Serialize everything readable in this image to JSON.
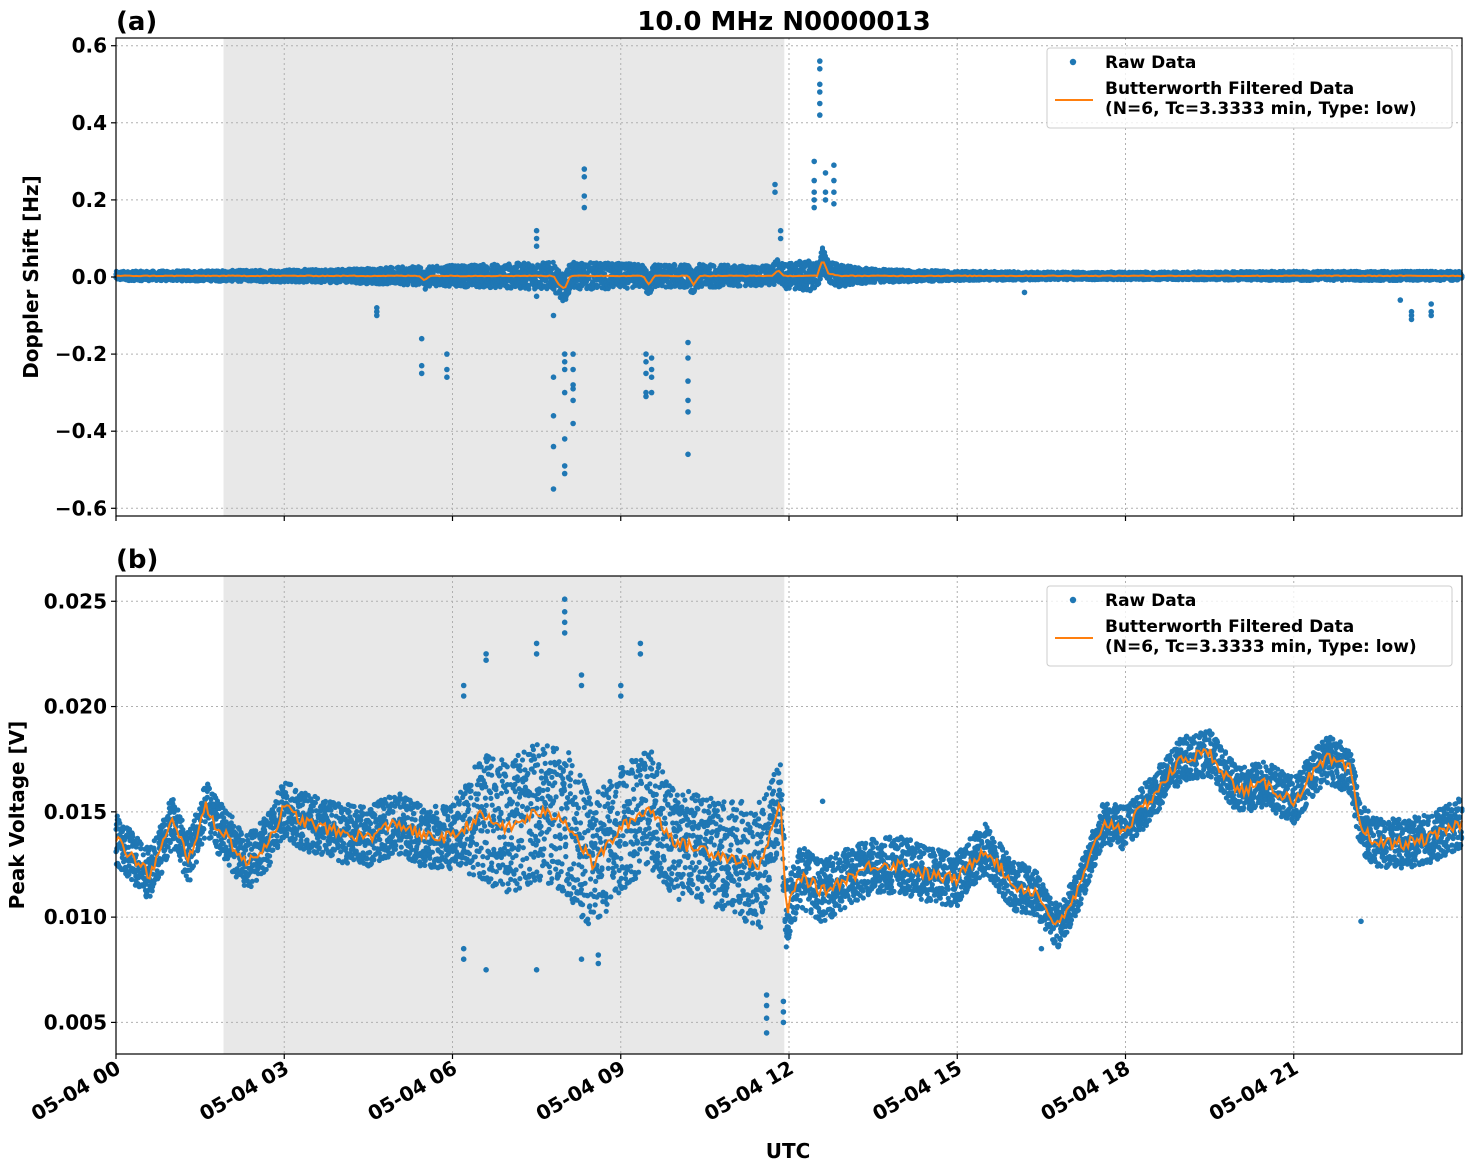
{
  "figure": {
    "title": "10.0 MHz N0000013",
    "xlabel": "UTC",
    "colors": {
      "raw": "#1f77b4",
      "filtered": "#ff7f0e",
      "shade": "#e8e8e8"
    }
  },
  "chart_data": [
    {
      "type": "scatter",
      "panel_label": "(a)",
      "ylabel": "Doppler Shift [Hz]",
      "ylim": [
        -0.62,
        0.62
      ],
      "yticks": [
        -0.6,
        -0.4,
        -0.2,
        0.0,
        0.2,
        0.4,
        0.6
      ],
      "ytick_labels": [
        "−0.6",
        "−0.4",
        "−0.2",
        "0.0",
        "0.2",
        "0.4",
        "0.6"
      ],
      "xlim": [
        "05-04 00:00",
        "05-05 00:00"
      ],
      "xticks": [
        "05-04 00:00",
        "05-04 03:00",
        "05-04 06:00",
        "05-04 09:00",
        "05-04 12:00",
        "05-04 15:00",
        "05-04 18:00",
        "05-04 21:00"
      ],
      "xtick_labels": [],
      "shaded_interval": [
        "05-04 01:55",
        "05-04 11:55"
      ],
      "grid": true,
      "legend_position": "top-right",
      "series": [
        {
          "name": "Raw Data",
          "style": "points",
          "band_hours": [
            0,
            2,
            4,
            5.5,
            6.5,
            7.5,
            8.5,
            9.5,
            10.5,
            11.5,
            12.3,
            12.8,
            13.5,
            15,
            17,
            19,
            21,
            22.5,
            24
          ],
          "band_half_width": [
            0.012,
            0.014,
            0.018,
            0.025,
            0.03,
            0.035,
            0.035,
            0.03,
            0.03,
            0.025,
            0.04,
            0.03,
            0.018,
            0.012,
            0.01,
            0.01,
            0.012,
            0.012,
            0.012
          ],
          "outliers": [
            {
              "hour": 4.65,
              "values": [
                -0.08,
                -0.09,
                -0.1
              ]
            },
            {
              "hour": 5.45,
              "values": [
                -0.16,
                -0.23,
                -0.25
              ]
            },
            {
              "hour": 5.9,
              "values": [
                -0.2,
                -0.24,
                -0.26
              ]
            },
            {
              "hour": 7.5,
              "values": [
                0.12,
                0.1,
                0.08,
                -0.05
              ]
            },
            {
              "hour": 7.8,
              "values": [
                -0.1,
                -0.26,
                -0.36,
                -0.44,
                -0.55
              ]
            },
            {
              "hour": 8.0,
              "values": [
                -0.2,
                -0.22,
                -0.24,
                -0.3,
                -0.42,
                -0.49,
                -0.51
              ]
            },
            {
              "hour": 8.15,
              "values": [
                -0.2,
                -0.24,
                -0.28,
                -0.32,
                -0.38,
                -0.29
              ]
            },
            {
              "hour": 8.35,
              "values": [
                0.28,
                0.26,
                0.21,
                0.18
              ]
            },
            {
              "hour": 9.45,
              "values": [
                -0.2,
                -0.22,
                -0.25,
                -0.3,
                -0.31
              ]
            },
            {
              "hour": 9.55,
              "values": [
                -0.21,
                -0.24,
                -0.26,
                -0.3
              ]
            },
            {
              "hour": 10.2,
              "values": [
                -0.17,
                -0.21,
                -0.27,
                -0.32,
                -0.35,
                -0.46
              ]
            },
            {
              "hour": 11.75,
              "values": [
                0.24,
                0.22
              ]
            },
            {
              "hour": 11.85,
              "values": [
                0.12,
                0.1
              ]
            },
            {
              "hour": 12.45,
              "values": [
                0.3,
                0.25,
                0.22,
                0.2,
                0.18
              ]
            },
            {
              "hour": 12.55,
              "values": [
                0.56,
                0.54,
                0.5,
                0.48,
                0.45,
                0.42
              ]
            },
            {
              "hour": 12.65,
              "values": [
                0.27,
                0.22,
                0.2
              ]
            },
            {
              "hour": 12.8,
              "values": [
                0.29,
                0.25,
                0.22,
                0.19
              ]
            },
            {
              "hour": 16.2,
              "values": [
                -0.04
              ]
            },
            {
              "hour": 22.9,
              "values": [
                -0.06
              ]
            },
            {
              "hour": 23.1,
              "values": [
                -0.09,
                -0.1,
                -0.11
              ]
            },
            {
              "hour": 23.45,
              "values": [
                -0.07,
                -0.09,
                -0.1
              ]
            }
          ]
        },
        {
          "name": "Butterworth Filtered Data\n(N=6, Tc=3.3333 min, Type: low)",
          "style": "line",
          "hours": [
            0,
            5.4,
            5.5,
            5.6,
            7.8,
            7.9,
            8.0,
            8.1,
            8.5,
            9.4,
            9.5,
            9.6,
            10.2,
            10.3,
            10.4,
            11.7,
            11.8,
            11.9,
            12.5,
            12.6,
            12.7,
            12.9,
            24
          ],
          "values": [
            0.003,
            0.003,
            -0.008,
            0.003,
            0.003,
            -0.02,
            -0.03,
            0.003,
            0.003,
            0.003,
            -0.02,
            0.003,
            0.003,
            -0.02,
            0.003,
            0.003,
            0.018,
            0.003,
            0.003,
            0.045,
            0.01,
            0.003,
            0.003
          ]
        }
      ]
    },
    {
      "type": "scatter",
      "panel_label": "(b)",
      "ylabel": "Peak Voltage [V]",
      "ylim": [
        0.0035,
        0.0262
      ],
      "yticks": [
        0.005,
        0.01,
        0.015,
        0.02,
        0.025
      ],
      "ytick_labels": [
        "0.005",
        "0.010",
        "0.015",
        "0.020",
        "0.025"
      ],
      "xlim": [
        "05-04 00:00",
        "05-05 00:00"
      ],
      "xticks": [
        "05-04 00:00",
        "05-04 03:00",
        "05-04 06:00",
        "05-04 09:00",
        "05-04 12:00",
        "05-04 15:00",
        "05-04 18:00",
        "05-04 21:00"
      ],
      "xtick_labels": [
        "05-04 00",
        "05-04 03",
        "05-04 06",
        "05-04 09",
        "05-04 12",
        "05-04 15",
        "05-04 18",
        "05-04 21"
      ],
      "shaded_interval": [
        "05-04 01:55",
        "05-04 11:55"
      ],
      "grid": true,
      "legend_position": "top-right",
      "series": [
        {
          "name": "Raw Data",
          "style": "points",
          "band_half_width_hours": [
            0,
            6,
            6.5,
            8,
            9,
            10.5,
            11.5,
            12,
            16,
            17,
            24
          ],
          "band_half_width": [
            0.0012,
            0.0015,
            0.003,
            0.0035,
            0.003,
            0.0025,
            0.003,
            0.0015,
            0.0012,
            0.001,
            0.0012
          ],
          "outliers": [
            {
              "hour": 6.2,
              "values": [
                0.021,
                0.0205,
                0.0085,
                0.008
              ]
            },
            {
              "hour": 6.6,
              "values": [
                0.0225,
                0.0222,
                0.0075
              ]
            },
            {
              "hour": 7.5,
              "values": [
                0.023,
                0.0225,
                0.0075
              ]
            },
            {
              "hour": 8.0,
              "values": [
                0.0251,
                0.0245,
                0.024,
                0.0235
              ]
            },
            {
              "hour": 8.3,
              "values": [
                0.0215,
                0.021,
                0.008
              ]
            },
            {
              "hour": 8.6,
              "values": [
                0.0078,
                0.0082
              ]
            },
            {
              "hour": 9.0,
              "values": [
                0.021,
                0.0205
              ]
            },
            {
              "hour": 9.35,
              "values": [
                0.023,
                0.0225
              ]
            },
            {
              "hour": 11.6,
              "values": [
                0.0045,
                0.0052,
                0.0058,
                0.0063
              ]
            },
            {
              "hour": 11.9,
              "values": [
                0.005,
                0.0055,
                0.006
              ]
            },
            {
              "hour": 12.6,
              "values": [
                0.0155
              ]
            },
            {
              "hour": 16.5,
              "values": [
                0.0085
              ]
            },
            {
              "hour": 22.2,
              "values": [
                0.0098
              ]
            }
          ]
        },
        {
          "name": "Butterworth Filtered Data\n(N=6, Tc=3.3333 min, Type: low)",
          "style": "line",
          "hours": [
            0,
            0.3,
            0.6,
            1.0,
            1.3,
            1.6,
            1.8,
            2.0,
            2.3,
            2.7,
            3.0,
            3.3,
            3.6,
            4.0,
            4.5,
            5.0,
            5.5,
            6.0,
            6.5,
            7.0,
            7.5,
            8.0,
            8.5,
            9.0,
            9.5,
            10.0,
            10.5,
            11.0,
            11.5,
            11.85,
            11.95,
            12.2,
            12.6,
            13.0,
            13.5,
            14.0,
            14.5,
            15.0,
            15.5,
            16.0,
            16.4,
            16.8,
            17.2,
            17.6,
            18.0,
            18.5,
            19.0,
            19.5,
            20.0,
            20.5,
            21.0,
            21.3,
            21.6,
            22.0,
            22.2,
            22.5,
            23.0,
            23.5,
            24
          ],
          "values": [
            0.0137,
            0.0128,
            0.012,
            0.0145,
            0.0128,
            0.0152,
            0.0143,
            0.0138,
            0.0125,
            0.0135,
            0.0152,
            0.0146,
            0.0143,
            0.014,
            0.0138,
            0.0145,
            0.0138,
            0.0138,
            0.0148,
            0.0142,
            0.015,
            0.0147,
            0.0125,
            0.0142,
            0.0152,
            0.0135,
            0.0132,
            0.0128,
            0.0125,
            0.0155,
            0.0102,
            0.012,
            0.0112,
            0.0118,
            0.0125,
            0.0125,
            0.012,
            0.0118,
            0.0133,
            0.0115,
            0.0112,
            0.0095,
            0.0115,
            0.0145,
            0.0142,
            0.0158,
            0.0175,
            0.0178,
            0.016,
            0.0163,
            0.0155,
            0.0167,
            0.0175,
            0.017,
            0.0142,
            0.0135,
            0.0135,
            0.0138,
            0.0145
          ]
        }
      ]
    }
  ]
}
